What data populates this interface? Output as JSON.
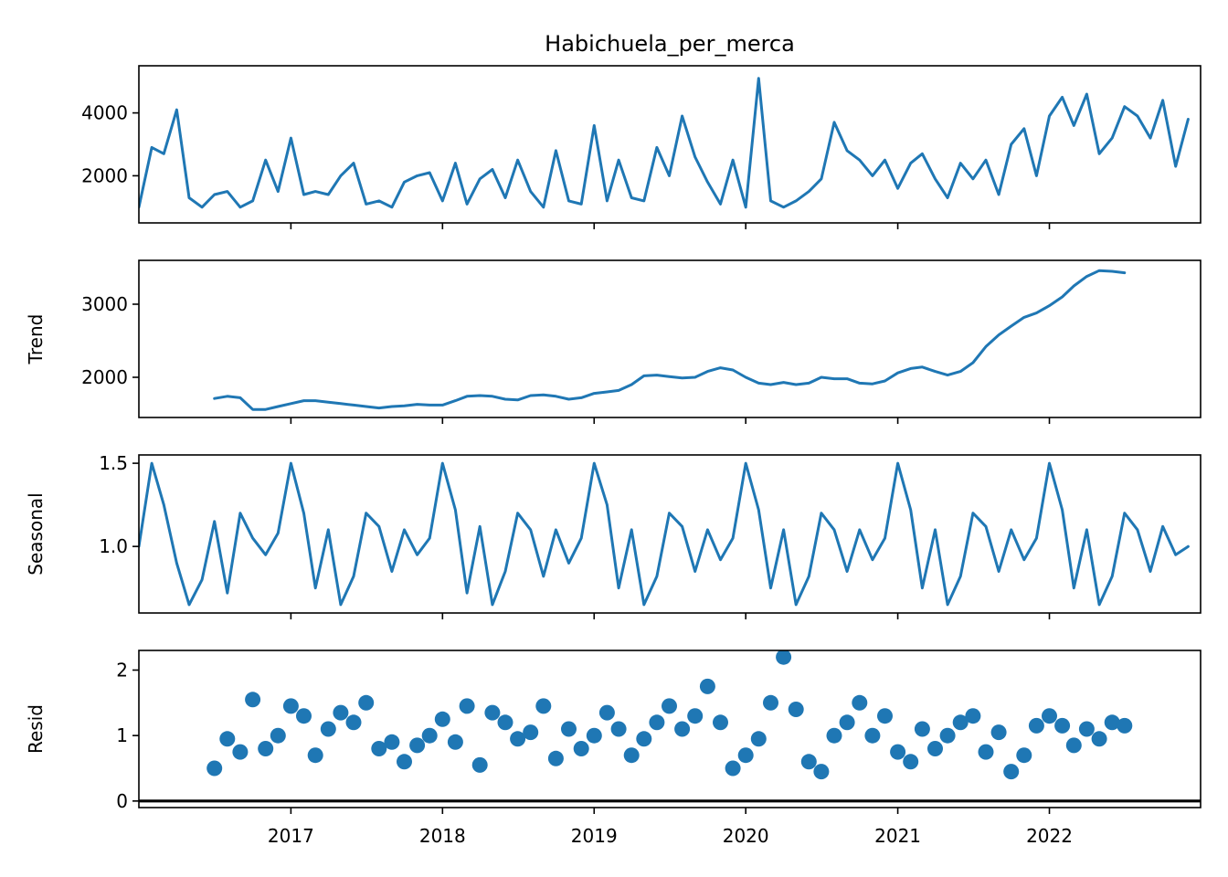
{
  "colors": {
    "series": "#1f77b4",
    "axis": "#000000",
    "zero_line": "#000000"
  },
  "chart_data": {
    "type": "line",
    "title": "Habichuela_per_merca",
    "x_range": [
      "2016-01-01",
      "2022-12-31"
    ],
    "x_ticks": [
      "2017",
      "2018",
      "2019",
      "2020",
      "2021",
      "2022"
    ],
    "grid": false,
    "panels": [
      {
        "name": "observed",
        "ylabel": "",
        "kind": "line",
        "ylim": [
          500,
          5500
        ],
        "yticks": [
          2000,
          4000
        ],
        "ytick_labels": [
          "2000",
          "4000"
        ],
        "series": {
          "x": [
            "2016-01-01",
            "2016-02-01",
            "2016-03-01",
            "2016-04-01",
            "2016-05-01",
            "2016-06-01",
            "2016-07-01",
            "2016-08-01",
            "2016-09-01",
            "2016-10-01",
            "2016-11-01",
            "2016-12-01",
            "2017-01-01",
            "2017-02-01",
            "2017-03-01",
            "2017-04-01",
            "2017-05-01",
            "2017-06-01",
            "2017-07-01",
            "2017-08-01",
            "2017-09-01",
            "2017-10-01",
            "2017-11-01",
            "2017-12-01",
            "2018-01-01",
            "2018-02-01",
            "2018-03-01",
            "2018-04-01",
            "2018-05-01",
            "2018-06-01",
            "2018-07-01",
            "2018-08-01",
            "2018-09-01",
            "2018-10-01",
            "2018-11-01",
            "2018-12-01",
            "2019-01-01",
            "2019-02-01",
            "2019-03-01",
            "2019-04-01",
            "2019-05-01",
            "2019-06-01",
            "2019-07-01",
            "2019-08-01",
            "2019-09-01",
            "2019-10-01",
            "2019-11-01",
            "2019-12-01",
            "2020-01-01",
            "2020-02-01",
            "2020-03-01",
            "2020-04-01",
            "2020-05-01",
            "2020-06-01",
            "2020-07-01",
            "2020-08-01",
            "2020-09-01",
            "2020-10-01",
            "2020-11-01",
            "2020-12-01",
            "2021-01-01",
            "2021-02-01",
            "2021-03-01",
            "2021-04-01",
            "2021-05-01",
            "2021-06-01",
            "2021-07-01",
            "2021-08-01",
            "2021-09-01",
            "2021-10-01",
            "2021-11-01",
            "2021-12-01",
            "2022-01-01",
            "2022-02-01",
            "2022-03-01",
            "2022-04-01",
            "2022-05-01",
            "2022-06-01",
            "2022-07-01",
            "2022-08-01",
            "2022-09-01",
            "2022-10-01",
            "2022-11-01",
            "2022-12-01"
          ],
          "values": [
            1000,
            2900,
            2700,
            4100,
            1300,
            1000,
            1400,
            1500,
            1000,
            1200,
            2500,
            1500,
            3200,
            1400,
            1500,
            1400,
            2000,
            2400,
            1100,
            1200,
            1000,
            1800,
            2000,
            2100,
            1200,
            2400,
            1100,
            1900,
            2200,
            1300,
            2500,
            1500,
            1000,
            2800,
            1200,
            1100,
            3600,
            1200,
            2500,
            1300,
            1200,
            2900,
            2000,
            3900,
            2600,
            1800,
            1100,
            2500,
            1000,
            5100,
            1200,
            1000,
            1200,
            1500,
            1900,
            3700,
            2800,
            2500,
            2000,
            2500,
            1600,
            2400,
            2700,
            1900,
            1300,
            2400,
            1900,
            2500,
            1400,
            3000,
            3500,
            2000,
            3900,
            4500,
            3600,
            4600,
            2700,
            3200,
            4200,
            3900,
            3200,
            4400,
            2300,
            3800
          ]
        }
      },
      {
        "name": "trend",
        "ylabel": "Trend",
        "kind": "line",
        "ylim": [
          1450,
          3600
        ],
        "yticks": [
          2000,
          3000
        ],
        "ytick_labels": [
          "2000",
          "3000"
        ],
        "series": {
          "x": [
            "2016-07-01",
            "2016-08-01",
            "2016-09-01",
            "2016-10-01",
            "2016-11-01",
            "2016-12-01",
            "2017-01-01",
            "2017-02-01",
            "2017-03-01",
            "2017-04-01",
            "2017-05-01",
            "2017-06-01",
            "2017-07-01",
            "2017-08-01",
            "2017-09-01",
            "2017-10-01",
            "2017-11-01",
            "2017-12-01",
            "2018-01-01",
            "2018-02-01",
            "2018-03-01",
            "2018-04-01",
            "2018-05-01",
            "2018-06-01",
            "2018-07-01",
            "2018-08-01",
            "2018-09-01",
            "2018-10-01",
            "2018-11-01",
            "2018-12-01",
            "2019-01-01",
            "2019-02-01",
            "2019-03-01",
            "2019-04-01",
            "2019-05-01",
            "2019-06-01",
            "2019-07-01",
            "2019-08-01",
            "2019-09-01",
            "2019-10-01",
            "2019-11-01",
            "2019-12-01",
            "2020-01-01",
            "2020-02-01",
            "2020-03-01",
            "2020-04-01",
            "2020-05-01",
            "2020-06-01",
            "2020-07-01",
            "2020-08-01",
            "2020-09-01",
            "2020-10-01",
            "2020-11-01",
            "2020-12-01",
            "2021-01-01",
            "2021-02-01",
            "2021-03-01",
            "2021-04-01",
            "2021-05-01",
            "2021-06-01",
            "2021-07-01",
            "2021-08-01",
            "2021-09-01",
            "2021-10-01",
            "2021-11-01",
            "2021-12-01",
            "2022-01-01",
            "2022-02-01",
            "2022-03-01",
            "2022-04-01",
            "2022-05-01",
            "2022-06-01",
            "2022-07-01"
          ],
          "values": [
            1710,
            1740,
            1720,
            1560,
            1560,
            1600,
            1640,
            1680,
            1680,
            1660,
            1640,
            1620,
            1600,
            1580,
            1600,
            1610,
            1630,
            1620,
            1620,
            1680,
            1740,
            1750,
            1740,
            1700,
            1690,
            1750,
            1760,
            1740,
            1700,
            1720,
            1780,
            1800,
            1820,
            1900,
            2020,
            2030,
            2010,
            1990,
            2000,
            2080,
            2130,
            2100,
            2000,
            1920,
            1900,
            1930,
            1900,
            1920,
            2000,
            1980,
            1980,
            1920,
            1910,
            1950,
            2060,
            2120,
            2140,
            2080,
            2030,
            2080,
            2200,
            2420,
            2580,
            2700,
            2820,
            2880,
            2980,
            3100,
            3250,
            3380,
            3460,
            3450,
            3430
          ]
        }
      },
      {
        "name": "seasonal",
        "ylabel": "Seasonal",
        "kind": "line",
        "ylim": [
          0.6,
          1.55
        ],
        "yticks": [
          1.0,
          1.5
        ],
        "ytick_labels": [
          "1.0",
          "1.5"
        ],
        "series": {
          "x": [
            "2016-01-01",
            "2016-02-01",
            "2016-03-01",
            "2016-04-01",
            "2016-05-01",
            "2016-06-01",
            "2016-07-01",
            "2016-08-01",
            "2016-09-01",
            "2016-10-01",
            "2016-11-01",
            "2016-12-01",
            "2017-01-01",
            "2017-02-01",
            "2017-03-01",
            "2017-04-01",
            "2017-05-01",
            "2017-06-01",
            "2017-07-01",
            "2017-08-01",
            "2017-09-01",
            "2017-10-01",
            "2017-11-01",
            "2017-12-01",
            "2018-01-01",
            "2018-02-01",
            "2018-03-01",
            "2018-04-01",
            "2018-05-01",
            "2018-06-01",
            "2018-07-01",
            "2018-08-01",
            "2018-09-01",
            "2018-10-01",
            "2018-11-01",
            "2018-12-01",
            "2019-01-01",
            "2019-02-01",
            "2019-03-01",
            "2019-04-01",
            "2019-05-01",
            "2019-06-01",
            "2019-07-01",
            "2019-08-01",
            "2019-09-01",
            "2019-10-01",
            "2019-11-01",
            "2019-12-01",
            "2020-01-01",
            "2020-02-01",
            "2020-03-01",
            "2020-04-01",
            "2020-05-01",
            "2020-06-01",
            "2020-07-01",
            "2020-08-01",
            "2020-09-01",
            "2020-10-01",
            "2020-11-01",
            "2020-12-01",
            "2021-01-01",
            "2021-02-01",
            "2021-03-01",
            "2021-04-01",
            "2021-05-01",
            "2021-06-01",
            "2021-07-01",
            "2021-08-01",
            "2021-09-01",
            "2021-10-01",
            "2021-11-01",
            "2021-12-01",
            "2022-01-01",
            "2022-02-01",
            "2022-03-01",
            "2022-04-01",
            "2022-05-01",
            "2022-06-01",
            "2022-07-01",
            "2022-08-01",
            "2022-09-01",
            "2022-10-01",
            "2022-11-01",
            "2022-12-01"
          ],
          "values": [
            1.0,
            1.5,
            1.25,
            0.9,
            0.65,
            0.8,
            1.15,
            0.72,
            1.2,
            1.05,
            0.95,
            1.08,
            1.5,
            1.2,
            0.75,
            1.1,
            0.65,
            0.82,
            1.2,
            1.12,
            0.85,
            1.1,
            0.95,
            1.05,
            1.5,
            1.22,
            0.72,
            1.12,
            0.65,
            0.85,
            1.2,
            1.1,
            0.82,
            1.1,
            0.9,
            1.05,
            1.5,
            1.25,
            0.75,
            1.1,
            0.65,
            0.82,
            1.2,
            1.12,
            0.85,
            1.1,
            0.92,
            1.05,
            1.5,
            1.22,
            0.75,
            1.1,
            0.65,
            0.82,
            1.2,
            1.1,
            0.85,
            1.1,
            0.92,
            1.05,
            1.5,
            1.22,
            0.75,
            1.1,
            0.65,
            0.82,
            1.2,
            1.12,
            0.85,
            1.1,
            0.92,
            1.05,
            1.5,
            1.22,
            0.75,
            1.1,
            0.65,
            0.82,
            1.2,
            1.1,
            0.85,
            1.12,
            0.95,
            1.0
          ]
        }
      },
      {
        "name": "resid",
        "ylabel": "Resid",
        "kind": "scatter",
        "ylim": [
          -0.1,
          2.3
        ],
        "yticks": [
          0,
          1,
          2
        ],
        "ytick_labels": [
          "0",
          "1",
          "2"
        ],
        "zero_line": 0,
        "series": {
          "x": [
            "2016-07-01",
            "2016-08-01",
            "2016-09-01",
            "2016-10-01",
            "2016-11-01",
            "2016-12-01",
            "2017-01-01",
            "2017-02-01",
            "2017-03-01",
            "2017-04-01",
            "2017-05-01",
            "2017-06-01",
            "2017-07-01",
            "2017-08-01",
            "2017-09-01",
            "2017-10-01",
            "2017-11-01",
            "2017-12-01",
            "2018-01-01",
            "2018-02-01",
            "2018-03-01",
            "2018-04-01",
            "2018-05-01",
            "2018-06-01",
            "2018-07-01",
            "2018-08-01",
            "2018-09-01",
            "2018-10-01",
            "2018-11-01",
            "2018-12-01",
            "2019-01-01",
            "2019-02-01",
            "2019-03-01",
            "2019-04-01",
            "2019-05-01",
            "2019-06-01",
            "2019-07-01",
            "2019-08-01",
            "2019-09-01",
            "2019-10-01",
            "2019-11-01",
            "2019-12-01",
            "2020-01-01",
            "2020-02-01",
            "2020-03-01",
            "2020-04-01",
            "2020-05-01",
            "2020-06-01",
            "2020-07-01",
            "2020-08-01",
            "2020-09-01",
            "2020-10-01",
            "2020-11-01",
            "2020-12-01",
            "2021-01-01",
            "2021-02-01",
            "2021-03-01",
            "2021-04-01",
            "2021-05-01",
            "2021-06-01",
            "2021-07-01",
            "2021-08-01",
            "2021-09-01",
            "2021-10-01",
            "2021-11-01",
            "2021-12-01",
            "2022-01-01",
            "2022-02-01",
            "2022-03-01",
            "2022-04-01",
            "2022-05-01",
            "2022-06-01",
            "2022-07-01"
          ],
          "values": [
            0.5,
            0.95,
            0.75,
            1.55,
            0.8,
            1.0,
            1.45,
            1.3,
            0.7,
            1.1,
            1.35,
            1.2,
            1.5,
            0.8,
            0.9,
            0.6,
            0.85,
            1.0,
            1.25,
            0.9,
            1.45,
            0.55,
            1.35,
            1.2,
            0.95,
            1.05,
            1.45,
            0.65,
            1.1,
            0.8,
            1.0,
            1.35,
            1.1,
            0.7,
            0.95,
            1.2,
            1.45,
            1.1,
            1.3,
            1.75,
            1.2,
            0.5,
            0.7,
            0.95,
            1.5,
            2.2,
            1.4,
            0.6,
            0.45,
            1.0,
            1.2,
            1.5,
            1.0,
            1.3,
            0.75,
            0.6,
            1.1,
            0.8,
            1.0,
            1.2,
            1.3,
            0.75,
            1.05,
            0.45,
            0.7,
            1.15,
            1.3,
            1.15,
            0.85,
            1.1,
            0.95,
            1.2,
            1.15
          ]
        }
      }
    ]
  }
}
